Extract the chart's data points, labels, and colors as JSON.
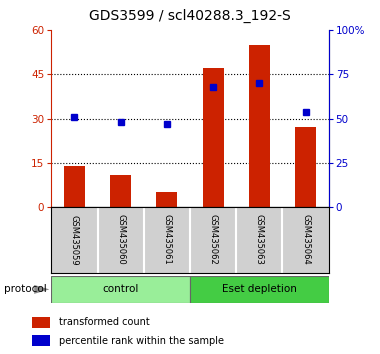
{
  "title": "GDS3599 / scl40288.3_192-S",
  "samples": [
    "GSM435059",
    "GSM435060",
    "GSM435061",
    "GSM435062",
    "GSM435063",
    "GSM435064"
  ],
  "red_bars": [
    14.0,
    11.0,
    5.0,
    47.0,
    55.0,
    27.0
  ],
  "blue_markers": [
    51.0,
    48.0,
    47.0,
    68.0,
    70.0,
    54.0
  ],
  "left_ylim": [
    0,
    60
  ],
  "right_ylim": [
    0,
    100
  ],
  "left_yticks": [
    0,
    15,
    30,
    45,
    60
  ],
  "right_yticks": [
    0,
    25,
    50,
    75,
    100
  ],
  "right_yticklabels": [
    "0",
    "25",
    "50",
    "75",
    "100%"
  ],
  "bar_color": "#cc2200",
  "marker_color": "#0000cc",
  "protocol_labels": [
    "control",
    "Eset depletion"
  ],
  "protocol_color_ctrl": "#99ee99",
  "protocol_color_eset": "#44cc44",
  "legend_bar_label": "transformed count",
  "legend_marker_label": "percentile rank within the sample",
  "title_fontsize": 10,
  "tick_fontsize": 7.5,
  "sample_fontsize": 6,
  "proto_fontsize": 7.5,
  "legend_fontsize": 7
}
